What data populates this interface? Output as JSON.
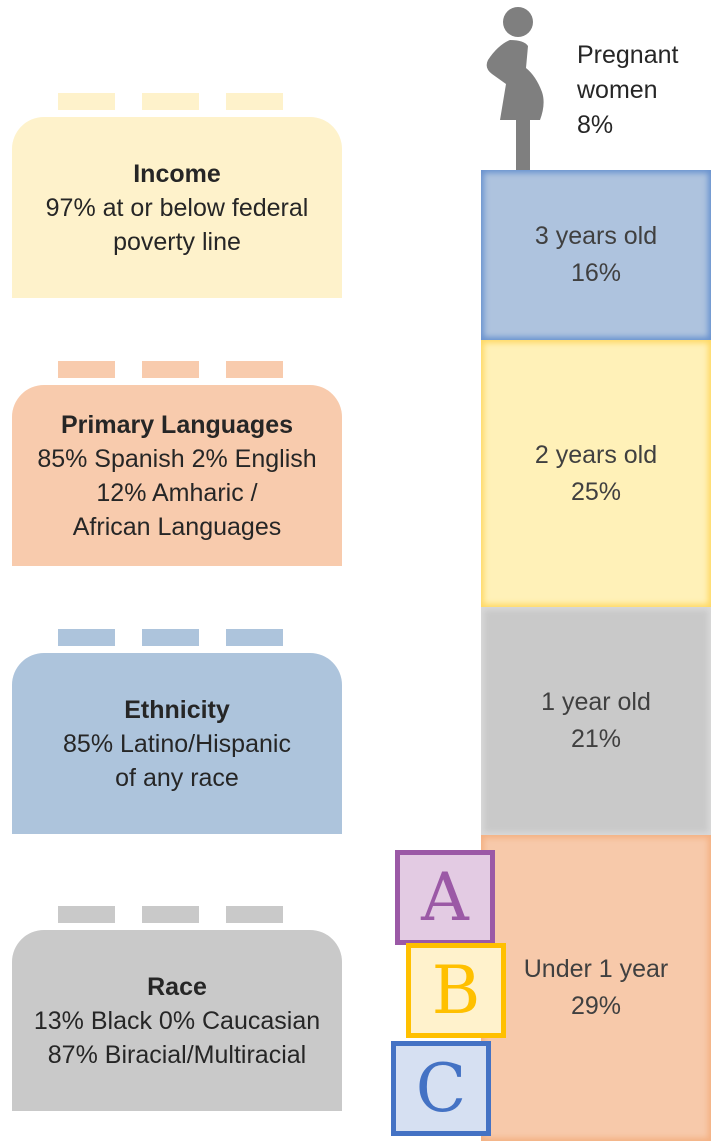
{
  "profile": {
    "pregnant": {
      "lines": [
        "Pregnant",
        "women",
        "8%"
      ]
    },
    "ages": [
      {
        "label": "3 years old",
        "value": "16%"
      },
      {
        "label": "2 years old",
        "value": "25%"
      },
      {
        "label": "1 year old",
        "value": "21%"
      },
      {
        "label": "Under 1 year",
        "value": "29%"
      }
    ],
    "bricks": [
      {
        "title": "Income",
        "lines": [
          "97%  at or below federal",
          "poverty line"
        ]
      },
      {
        "title": "Primary Languages",
        "lines": [
          "85% Spanish  2% English",
          "12% Amharic /",
          "African Languages"
        ]
      },
      {
        "title": "Ethnicity",
        "lines": [
          "85%  Latino/Hispanic",
          "of any race"
        ]
      },
      {
        "title": "Race",
        "lines": [
          "13% Black 0% Caucasian",
          "87%  Biracial/Multiracial"
        ]
      }
    ],
    "letters": [
      "A",
      "B",
      "C"
    ]
  }
}
